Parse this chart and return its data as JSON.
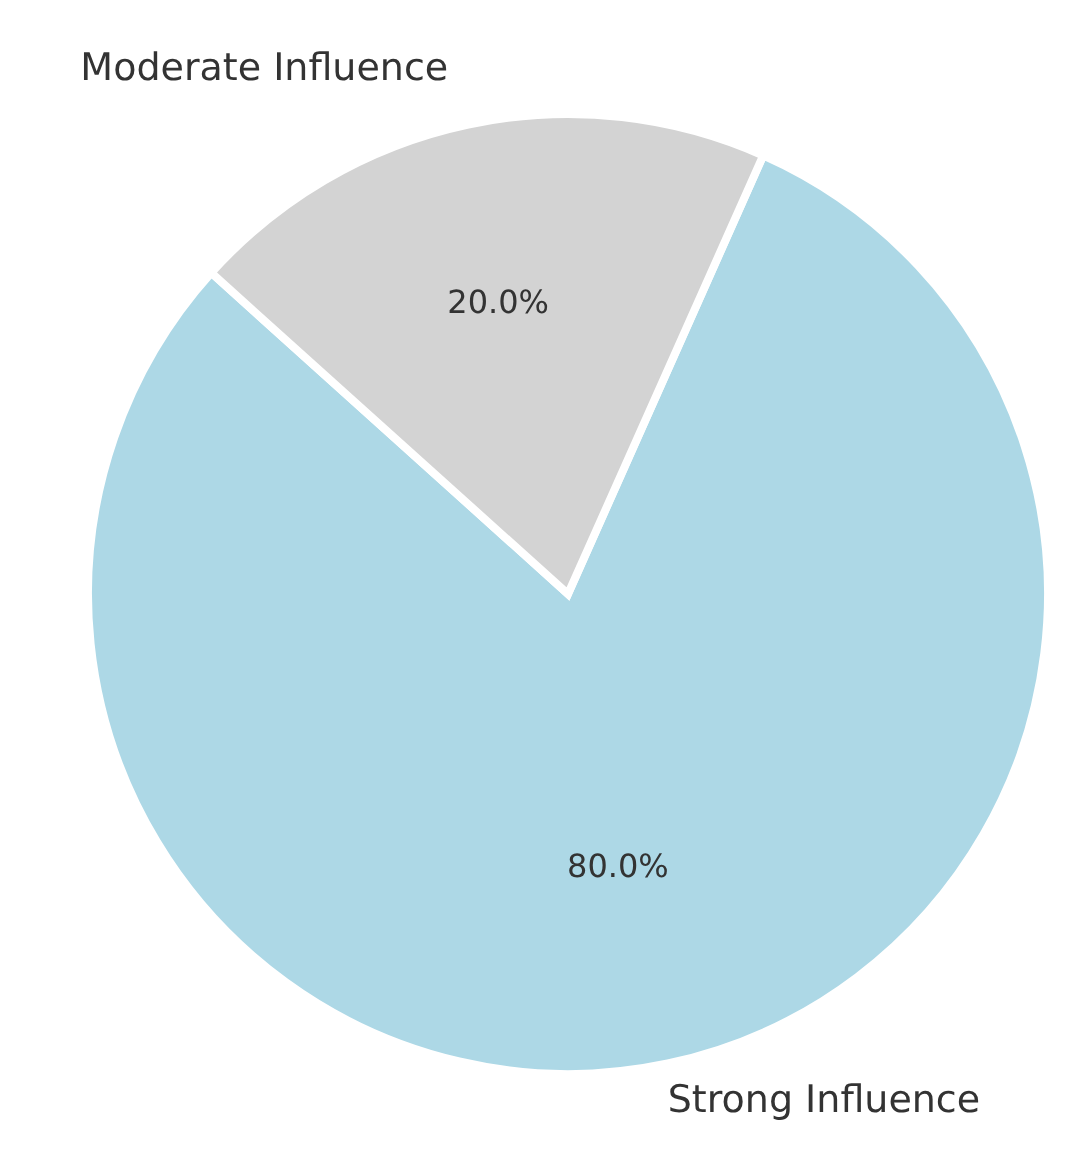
{
  "chart_data": {
    "type": "pie",
    "categories": [
      "Strong Influence",
      "Moderate Influence"
    ],
    "values": [
      80,
      20
    ],
    "colors": [
      "#add8e6",
      "#d3d3d3"
    ],
    "value_labels": [
      "80.0%",
      "20.0%"
    ]
  }
}
